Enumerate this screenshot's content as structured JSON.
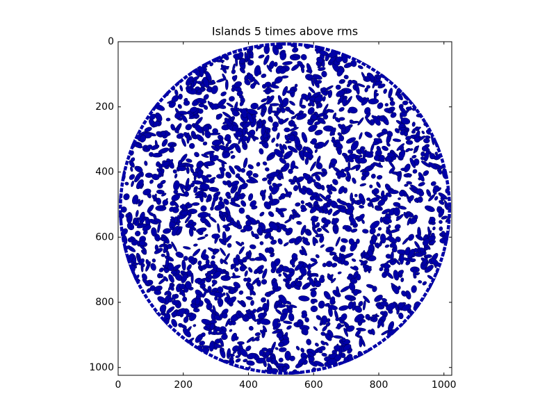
{
  "chart_data": {
    "type": "image",
    "title": "Islands 5 times above rms",
    "xlim": [
      0,
      1024
    ],
    "ylim": [
      1024,
      0
    ],
    "xticks": [
      0,
      200,
      400,
      600,
      800,
      1000
    ],
    "yticks": [
      0,
      200,
      400,
      600,
      800,
      1000
    ],
    "color": "#0000a8"
  }
}
